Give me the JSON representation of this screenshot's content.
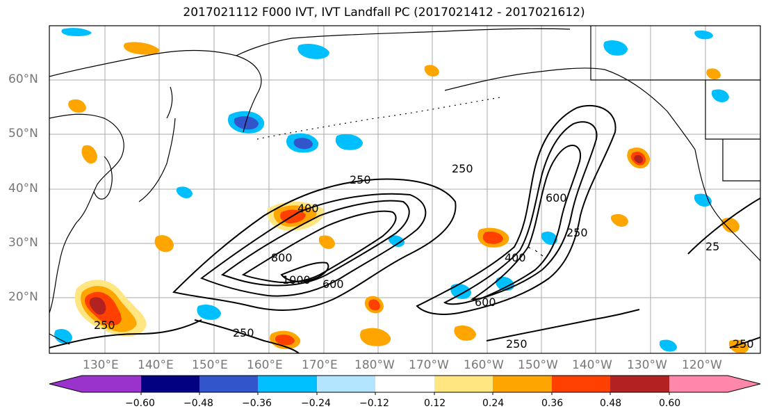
{
  "title": "2017021112 F000 IVT, IVT Landfall PC (2017021412 - 2017021612)",
  "lat_labels": [
    "60°N",
    "50°N",
    "40°N",
    "30°N",
    "20°N"
  ],
  "lon_labels": [
    "130°E",
    "140°E",
    "150°E",
    "160°E",
    "170°E",
    "180°W",
    "170°W",
    "160°W",
    "150°W",
    "140°W",
    "130°W",
    "120°W"
  ],
  "contour_labels": [
    "250",
    "400",
    "600",
    "800",
    "1000",
    "250",
    "250",
    "400",
    "600",
    "600",
    "250",
    "250",
    "250",
    "250",
    "25"
  ],
  "colorbar": {
    "colors": [
      "#9933cc",
      "#000080",
      "#3355cc",
      "#00bfff",
      "#b3e5ff",
      "#ffffff",
      "#ffe680",
      "#ffa500",
      "#ff4000",
      "#b22222",
      "#ff88aa"
    ],
    "tick_labels": [
      "−0.60",
      "−0.48",
      "−0.36",
      "−0.24",
      "−0.12",
      "0.12",
      "0.24",
      "0.36",
      "0.48",
      "0.60"
    ]
  }
}
